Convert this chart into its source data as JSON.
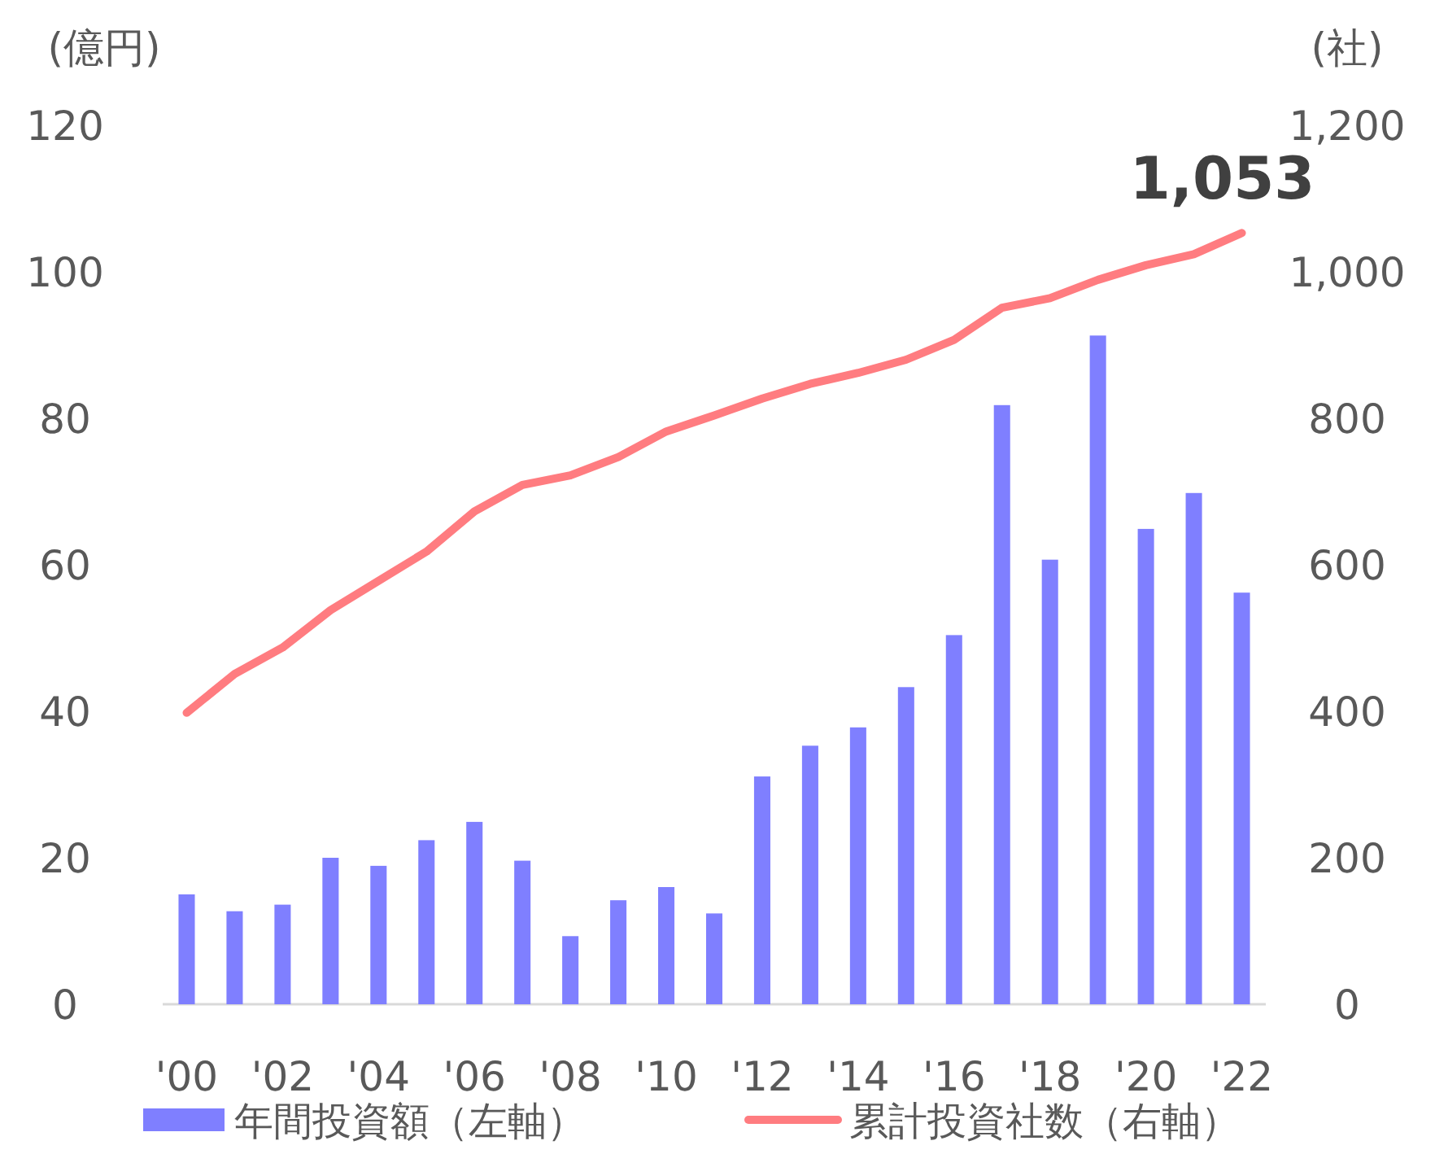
{
  "chart_data": {
    "type": "bar",
    "categories": [
      "'00",
      null,
      "'02",
      null,
      "'04",
      null,
      "'06",
      null,
      "'08",
      null,
      "'10",
      null,
      "'12",
      null,
      "'14",
      null,
      "'16",
      null,
      "'18",
      null,
      "'20",
      null,
      "'22"
    ],
    "series": [
      {
        "name": "年間投資額（左軸）",
        "color": "#7f7fff",
        "values": [
          15,
          12.7,
          13.6,
          20,
          18.9,
          22.4,
          24.9,
          19.6,
          9.3,
          14.2,
          16,
          12.4,
          31.1,
          35.3,
          37.8,
          43.3,
          50.4,
          81.8,
          60.7,
          91.3,
          64.9,
          69.8,
          56.2
        ]
      },
      {
        "name": "累計投資社数（右軸）",
        "type": "line",
        "axis": "y2",
        "color": "#ff7c80",
        "values": [
          398,
          451,
          487,
          538,
          578,
          618,
          673,
          709,
          722,
          747,
          782,
          804,
          827,
          847,
          862,
          880,
          907,
          951,
          964,
          989,
          1009,
          1024,
          1053
        ]
      }
    ],
    "ylabel": "(億円)",
    "y2label": "(社)",
    "ylim": [
      0,
      120
    ],
    "yticks": [
      0,
      20,
      40,
      60,
      80,
      100,
      120
    ],
    "y2lim": [
      0,
      1200
    ],
    "y2ticks": [
      0,
      {
        "value": 200,
        "label": "200"
      },
      {
        "value": 400,
        "label": "400"
      },
      {
        "value": 600,
        "label": "600"
      },
      {
        "value": 800,
        "label": "800"
      },
      {
        "value": 1000,
        "label": "1,000"
      },
      {
        "value": 1200,
        "label": "1,200"
      }
    ],
    "annotations": [
      "1,053"
    ],
    "legend": "bottom",
    "grid": false
  }
}
